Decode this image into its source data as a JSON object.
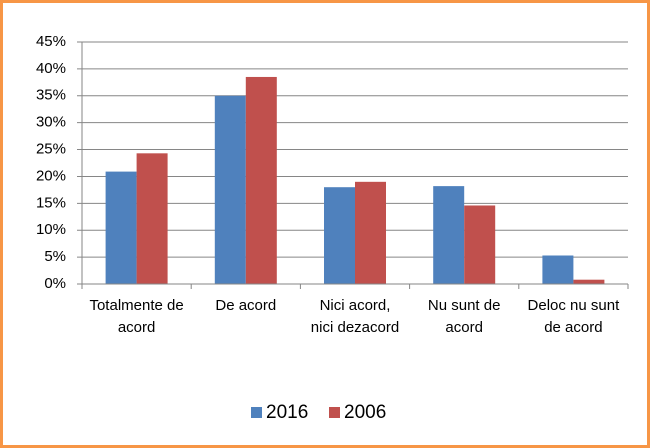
{
  "chart_data": {
    "type": "bar",
    "categories": [
      "Totalmente de acord",
      "De acord",
      "Nici acord, nici dezacord",
      "Nu sunt de acord",
      "Deloc nu sunt de acord"
    ],
    "series": [
      {
        "name": "2016",
        "color": "#4f81bd",
        "values": [
          20.9,
          35,
          18,
          18.2,
          5.3
        ]
      },
      {
        "name": "2006",
        "color": "#c0504d",
        "values": [
          24.3,
          38.5,
          19,
          14.6,
          0.8
        ]
      }
    ],
    "ylim": [
      0,
      45
    ],
    "yticks": [
      {
        "value": 0,
        "label": "0%"
      },
      {
        "value": 5,
        "label": "5%"
      },
      {
        "value": 10,
        "label": "10%"
      },
      {
        "value": 15,
        "label": "15%"
      },
      {
        "value": 20,
        "label": "20%"
      },
      {
        "value": 25,
        "label": "25%"
      },
      {
        "value": 30,
        "label": "30%"
      },
      {
        "value": 35,
        "label": "35%"
      },
      {
        "value": 40,
        "label": "40%"
      },
      {
        "value": 45,
        "label": "45%"
      }
    ],
    "grid": true,
    "legend": "bottom"
  }
}
